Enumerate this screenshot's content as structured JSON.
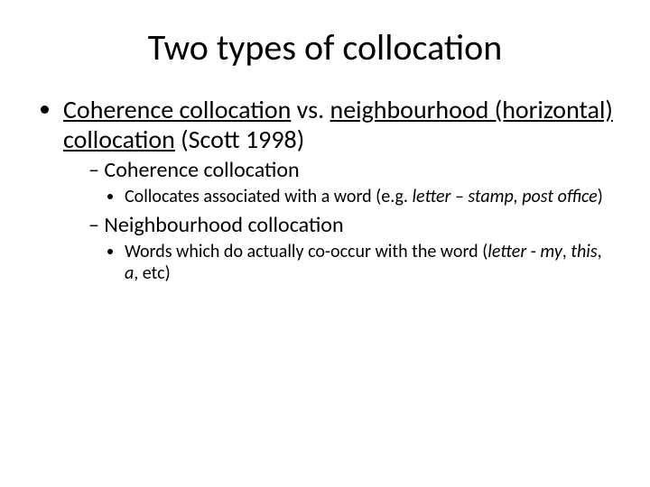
{
  "background_color": "#ffffff",
  "text_color": "#000000",
  "fonts": {
    "family": "Calibri",
    "title_size_pt": 40,
    "lvl1_size_pt": 28,
    "lvl2_size_pt": 24,
    "lvl3_size_pt": 20
  },
  "title": "Two types of collocation",
  "bullets": {
    "main": {
      "pre": "",
      "u1": "Coherence collocation",
      "mid": " vs. ",
      "u2": "neighbourhood (horizontal) collocation",
      "post": " (Scott 1998)"
    },
    "sub1": {
      "label": "Coherence collocation",
      "detail_pre": "Collocates associated with a word (e.g. ",
      "detail_i": "letter – stamp, post office",
      "detail_post": ")"
    },
    "sub2": {
      "label": "Neighbourhood collocation",
      "detail_pre": "Words which do actually co-occur with the word (",
      "detail_i1": "letter",
      "detail_mid": " - ",
      "detail_i2": "my",
      "detail_c1": ", ",
      "detail_i3": "this",
      "detail_c2": ", ",
      "detail_i4": "a",
      "detail_post": ", etc)"
    }
  }
}
